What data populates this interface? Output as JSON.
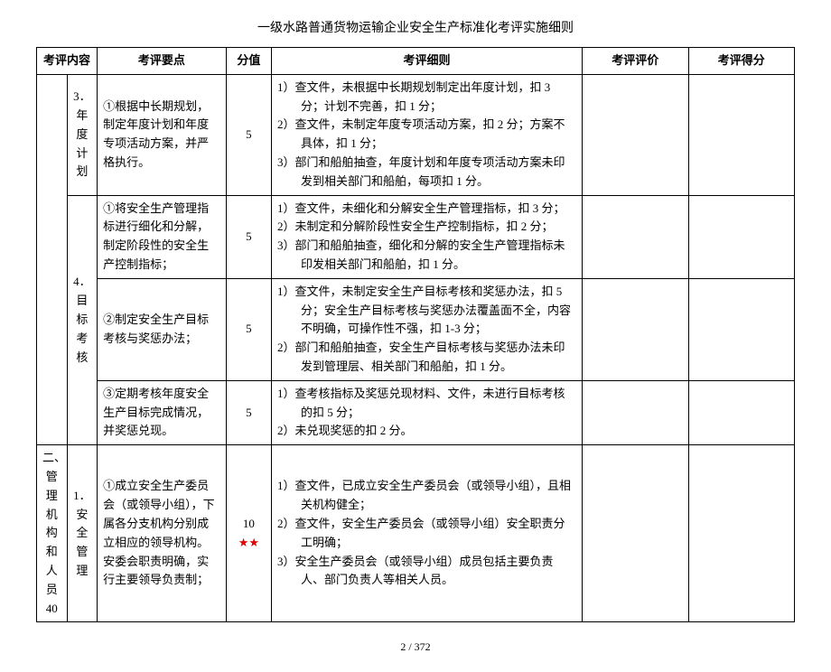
{
  "doc_title": "一级水路普通货物运输企业安全生产标准化考评实施细则",
  "columns": {
    "category": "考评内容",
    "point": "考评要点",
    "score": "分值",
    "detail": "考评细则",
    "eval": "考评评价",
    "score_got": "考评得分"
  },
  "rows": [
    {
      "cat": "",
      "sub": "3．年度计划",
      "point": "①根据中长期规划，制定年度计划和年度专项活动方案，并严格执行。",
      "score": "5",
      "stars": "",
      "detail": [
        "1）查文件，未根据中长期规划制定出年度计划，扣 3 分；计划不完善，扣 1 分；",
        "2）查文件，未制定年度专项活动方案，扣 2 分；方案不具体，扣 1 分；",
        "3）部门和船舶抽查，年度计划和年度专项活动方案未印发到相关部门和船舶，每项扣 1 分。"
      ]
    },
    {
      "cat": "",
      "sub": "4．目标考核",
      "point": "①将安全生产管理指标进行细化和分解，制定阶段性的安全生产控制指标；",
      "score": "5",
      "stars": "",
      "detail": [
        "1）查文件，未细化和分解安全生产管理指标，扣 3 分；",
        "2）未制定和分解阶段性安全生产控制指标，扣 2 分；",
        "3）部门和船舶抽查，细化和分解的安全生产管理指标未印发相关部门和船舶，扣 1 分。"
      ]
    },
    {
      "cat": "",
      "sub": "",
      "point": "②制定安全生产目标考核与奖惩办法；",
      "score": "5",
      "stars": "",
      "detail": [
        "1）查文件，未制定安全生产目标考核和奖惩办法，扣 5 分；安全生产目标考核与奖惩办法覆盖面不全，内容不明确，可操作性不强，扣 1-3 分；",
        "2）部门和船舶抽查，安全生产目标考核与奖惩办法未印发到管理层、相关部门和船舶，扣 1 分。"
      ]
    },
    {
      "cat": "",
      "sub": "",
      "point": "③定期考核年度安全生产目标完成情况，并奖惩兑现。",
      "score": "5",
      "stars": "",
      "detail": [
        "1）查考核指标及奖惩兑现材料、文件，未进行目标考核的扣 5 分；",
        "2）未兑现奖惩的扣 2 分。"
      ]
    },
    {
      "cat": "二、管理机构和人员 40",
      "sub": "1．安全管理",
      "point": "①成立安全生产委员会（或领导小组），下属各分支机构分别成立相应的领导机构。安委会职责明确，实行主要领导负责制；",
      "score": "10",
      "stars": "★★",
      "detail": [
        "1）查文件，已成立安全生产委员会（或领导小组），且相关机构健全；",
        "2）查文件，安全生产委员会（或领导小组）安全职责分工明确；",
        "3）安全生产委员会（或领导小组）成员包括主要负责人、部门负责人等相关人员。"
      ]
    }
  ],
  "pager": "2  /  372"
}
